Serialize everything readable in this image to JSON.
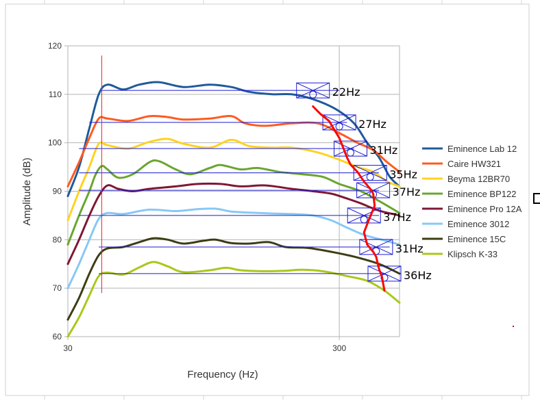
{
  "chart_data": {
    "type": "line",
    "xscale": "log",
    "xlim": [
      30,
      500
    ],
    "ylim": [
      60,
      120
    ],
    "xlabel": "Frequency (Hz)",
    "ylabel": "Amplitude (dB)",
    "xticks": [
      "30",
      "300"
    ],
    "yticks": [
      "60",
      "70",
      "80",
      "90",
      "100",
      "110",
      "120"
    ],
    "grid": true,
    "legend": "right",
    "series": [
      {
        "name": "Eminence Lab 12",
        "color": "#1f5a9a",
        "points": [
          [
            30,
            89
          ],
          [
            33,
            95
          ],
          [
            36,
            103
          ],
          [
            39,
            110
          ],
          [
            42,
            112
          ],
          [
            48,
            111
          ],
          [
            55,
            112
          ],
          [
            65,
            112.5
          ],
          [
            80,
            111.5
          ],
          [
            100,
            112
          ],
          [
            120,
            111.5
          ],
          [
            140,
            110.5
          ],
          [
            170,
            110
          ],
          [
            200,
            110
          ],
          [
            240,
            109
          ],
          [
            290,
            107
          ],
          [
            340,
            104
          ],
          [
            380,
            100
          ],
          [
            420,
            97
          ],
          [
            460,
            93
          ],
          [
            500,
            91
          ]
        ]
      },
      {
        "name": "Caire HW321",
        "color": "#ff5a1f",
        "points": [
          [
            30,
            91
          ],
          [
            33,
            96
          ],
          [
            36,
            101
          ],
          [
            39,
            105
          ],
          [
            42,
            105
          ],
          [
            50,
            104.5
          ],
          [
            60,
            105.5
          ],
          [
            70,
            105.3
          ],
          [
            80,
            104.8
          ],
          [
            100,
            105
          ],
          [
            120,
            105.5
          ],
          [
            135,
            104
          ],
          [
            160,
            103.5
          ],
          [
            200,
            104
          ],
          [
            250,
            104
          ],
          [
            300,
            102
          ],
          [
            350,
            100
          ],
          [
            400,
            98.5
          ],
          [
            450,
            96
          ],
          [
            500,
            94
          ]
        ]
      },
      {
        "name": "Beyma 12BR70",
        "color": "#ffd21f",
        "points": [
          [
            30,
            84
          ],
          [
            33,
            90
          ],
          [
            36,
            95
          ],
          [
            39,
            99.8
          ],
          [
            42,
            99.5
          ],
          [
            50,
            98.8
          ],
          [
            60,
            100.2
          ],
          [
            70,
            100.8
          ],
          [
            80,
            99.8
          ],
          [
            100,
            99
          ],
          [
            120,
            100.6
          ],
          [
            140,
            99.3
          ],
          [
            170,
            99
          ],
          [
            200,
            99
          ],
          [
            250,
            98
          ],
          [
            300,
            96.5
          ],
          [
            350,
            95
          ],
          [
            400,
            94
          ],
          [
            450,
            92
          ],
          [
            500,
            91
          ]
        ]
      },
      {
        "name": "Eminence BP122",
        "color": "#6aa530",
        "points": [
          [
            30,
            79
          ],
          [
            33,
            85
          ],
          [
            36,
            90
          ],
          [
            38,
            93.5
          ],
          [
            40,
            95.2
          ],
          [
            42,
            94.5
          ],
          [
            46,
            92.8
          ],
          [
            52,
            93.5
          ],
          [
            60,
            96
          ],
          [
            65,
            96.2
          ],
          [
            75,
            94.5
          ],
          [
            85,
            93.5
          ],
          [
            100,
            94.8
          ],
          [
            110,
            95.4
          ],
          [
            130,
            94.5
          ],
          [
            150,
            94.8
          ],
          [
            180,
            94
          ],
          [
            220,
            93.5
          ],
          [
            260,
            93
          ],
          [
            300,
            91.5
          ],
          [
            360,
            90
          ],
          [
            420,
            88
          ],
          [
            500,
            85.5
          ]
        ]
      },
      {
        "name": "Eminence Pro 12A",
        "color": "#7f1734",
        "points": [
          [
            30,
            75
          ],
          [
            33,
            80
          ],
          [
            36,
            85
          ],
          [
            39,
            89
          ],
          [
            42,
            91.2
          ],
          [
            46,
            90.5
          ],
          [
            52,
            90
          ],
          [
            60,
            90.5
          ],
          [
            75,
            91
          ],
          [
            90,
            91.5
          ],
          [
            110,
            91.5
          ],
          [
            130,
            91
          ],
          [
            160,
            91.2
          ],
          [
            200,
            90.5
          ],
          [
            240,
            90
          ],
          [
            280,
            89.5
          ],
          [
            320,
            88.5
          ],
          [
            360,
            87.5
          ],
          [
            420,
            86
          ],
          [
            500,
            85
          ]
        ]
      },
      {
        "name": "Eminence 3012",
        "color": "#87c8f5",
        "points": [
          [
            30,
            70
          ],
          [
            33,
            75
          ],
          [
            36,
            80
          ],
          [
            39,
            84.3
          ],
          [
            42,
            85.5
          ],
          [
            48,
            85.3
          ],
          [
            60,
            86.2
          ],
          [
            75,
            85.9
          ],
          [
            90,
            86.3
          ],
          [
            105,
            86.4
          ],
          [
            120,
            85.8
          ],
          [
            140,
            85.6
          ],
          [
            170,
            85.4
          ],
          [
            200,
            85.3
          ],
          [
            240,
            85
          ],
          [
            280,
            84
          ],
          [
            320,
            82.5
          ],
          [
            370,
            81
          ],
          [
            430,
            80
          ],
          [
            500,
            79
          ]
        ]
      },
      {
        "name": "Eminence 15C",
        "color": "#3d3d14",
        "points": [
          [
            30,
            63.5
          ],
          [
            33,
            68
          ],
          [
            36,
            73
          ],
          [
            39,
            76.8
          ],
          [
            42,
            78.2
          ],
          [
            48,
            78.5
          ],
          [
            55,
            79.5
          ],
          [
            62,
            80.3
          ],
          [
            70,
            80
          ],
          [
            80,
            79.2
          ],
          [
            95,
            79.8
          ],
          [
            105,
            80
          ],
          [
            120,
            79.3
          ],
          [
            140,
            79.2
          ],
          [
            165,
            79.5
          ],
          [
            190,
            78.5
          ],
          [
            230,
            78.3
          ],
          [
            280,
            77.5
          ],
          [
            340,
            76.5
          ],
          [
            420,
            75
          ],
          [
            500,
            73
          ]
        ]
      },
      {
        "name": "Klipsch K-33",
        "color": "#a8c81a",
        "points": [
          [
            30,
            60
          ],
          [
            33,
            64
          ],
          [
            36,
            68.5
          ],
          [
            39,
            72.5
          ],
          [
            42,
            73.2
          ],
          [
            48,
            72.8
          ],
          [
            55,
            74.3
          ],
          [
            62,
            75.4
          ],
          [
            70,
            74.5
          ],
          [
            80,
            73.3
          ],
          [
            100,
            73.7
          ],
          [
            115,
            74.2
          ],
          [
            130,
            73.7
          ],
          [
            160,
            73.5
          ],
          [
            190,
            73.6
          ],
          [
            220,
            73.8
          ],
          [
            260,
            73.5
          ],
          [
            320,
            72.5
          ],
          [
            380,
            71.5
          ],
          [
            440,
            69.5
          ],
          [
            500,
            67
          ]
        ]
      }
    ],
    "reference_lines": [
      {
        "level": 110.8,
        "from": 40,
        "to": 300,
        "label": "22Hz",
        "marker_x": 240
      },
      {
        "level": 104.2,
        "from": 36,
        "to": 320,
        "label": "27Hz",
        "marker_x": 300
      },
      {
        "level": 98.8,
        "from": 33,
        "to": 340,
        "label": "31Hz",
        "marker_x": 330
      },
      {
        "level": 93.8,
        "from": 33,
        "to": 420,
        "label": "35Hz",
        "marker_x": 390
      },
      {
        "level": 90.2,
        "from": 33,
        "to": 420,
        "label": "37Hz",
        "marker_x": 400
      },
      {
        "level": 85,
        "from": 33,
        "to": 420,
        "label": "37Hz",
        "marker_x": 370
      },
      {
        "level": 78.5,
        "from": 39,
        "to": 460,
        "label": "31Hz",
        "marker_x": 410
      },
      {
        "level": 73,
        "from": 39,
        "to": 440,
        "label": "36Hz",
        "marker_x": 440
      }
    ],
    "red_trace": [
      [
        240,
        107.5
      ],
      [
        255,
        106
      ],
      [
        275,
        104.5
      ],
      [
        300,
        101
      ],
      [
        310,
        99
      ],
      [
        320,
        97
      ],
      [
        330,
        95.5
      ],
      [
        350,
        94
      ],
      [
        370,
        92
      ],
      [
        390,
        90.5
      ],
      [
        400,
        89.5
      ],
      [
        405,
        87
      ],
      [
        385,
        84
      ],
      [
        370,
        81.5
      ],
      [
        380,
        79
      ],
      [
        400,
        77.5
      ],
      [
        410,
        76.5
      ],
      [
        420,
        74
      ],
      [
        430,
        72.5
      ],
      [
        440,
        69.5
      ]
    ],
    "vertical_marker_x": 40,
    "colors": {
      "plot_background": "#ffffff",
      "grid": "#b3b3b3",
      "reference_line": "#1a1ad0",
      "red_trace": "#ff0000",
      "vertical_marker": "#ff2020",
      "spreadsheet_grid": "#d6d6d6"
    }
  }
}
